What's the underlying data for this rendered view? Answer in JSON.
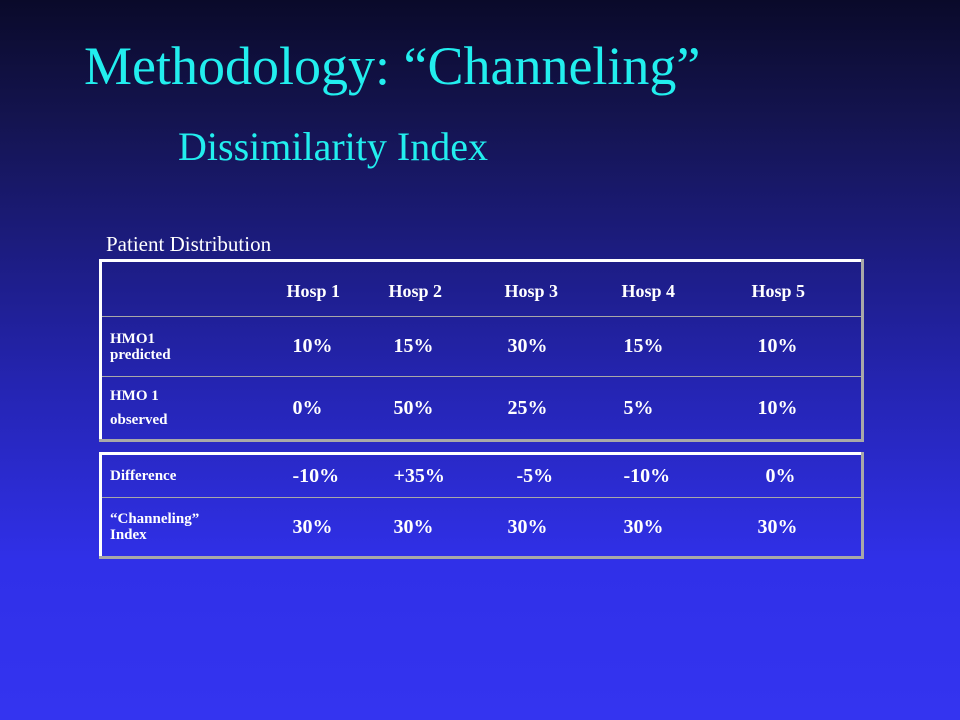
{
  "slide": {
    "title": "Methodology: “Channeling”",
    "subtitle": "Dissimilarity Index",
    "table_caption": "Patient Distribution"
  },
  "distribution_table": {
    "headers": [
      "",
      "Hosp 1",
      "Hosp 2",
      "Hosp 3",
      "Hosp 4",
      "Hosp 5"
    ],
    "rows": [
      {
        "label_line1": "HMO1",
        "label_line2": "predicted",
        "values": [
          "10%",
          "15%",
          "30%",
          "15%",
          "10%"
        ]
      },
      {
        "label_line1": "HMO 1",
        "label_line2": "observed",
        "values": [
          "0%",
          "50%",
          "25%",
          "5%",
          "10%"
        ]
      }
    ]
  },
  "difference_table": {
    "rows": [
      {
        "label_line1": "Difference",
        "label_line2": "",
        "values": [
          "-10%",
          "+35%",
          "-5%",
          "-10%",
          "0%"
        ]
      },
      {
        "label_line1": "“Channeling”",
        "label_line2": "Index",
        "values": [
          "30%",
          "30%",
          "30%",
          "30%",
          "30%"
        ]
      }
    ]
  }
}
